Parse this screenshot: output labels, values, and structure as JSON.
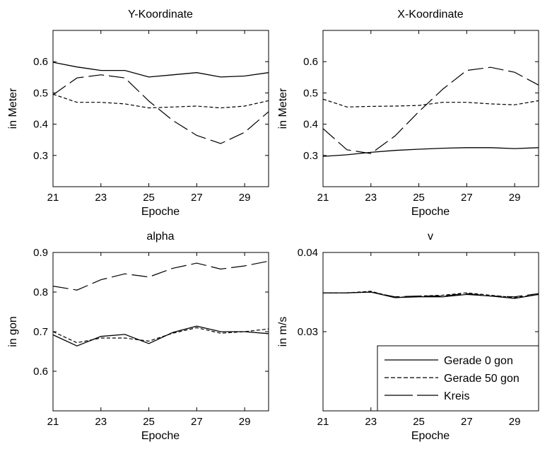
{
  "chart_data": [
    {
      "type": "line",
      "title": "Y-Koordinate",
      "xlabel": "Epoche",
      "ylabel": "in Meter",
      "xlim": [
        21,
        30
      ],
      "ylim": [
        0.2,
        0.7
      ],
      "xticks": [
        21,
        23,
        25,
        27,
        29
      ],
      "xtick_labels": [
        "21",
        "23",
        "25",
        "27",
        "29"
      ],
      "yticks": [
        0.3,
        0.4,
        0.5,
        0.6
      ],
      "ytick_labels": [
        "0.3",
        "0.4",
        "0.5",
        "0.6"
      ],
      "grid": false,
      "x": [
        21,
        22,
        23,
        24,
        25,
        26,
        27,
        28,
        29,
        30
      ],
      "series": [
        {
          "name": "Gerade 0 gon",
          "style": "solid",
          "values": [
            0.598,
            0.583,
            0.572,
            0.572,
            0.551,
            0.558,
            0.565,
            0.551,
            0.554,
            0.565
          ]
        },
        {
          "name": "Gerade 50 gon",
          "style": "dashed",
          "values": [
            0.496,
            0.47,
            0.47,
            0.465,
            0.452,
            0.455,
            0.458,
            0.452,
            0.458,
            0.475
          ]
        },
        {
          "name": "Kreis",
          "style": "longdash",
          "values": [
            0.494,
            0.548,
            0.558,
            0.548,
            0.474,
            0.412,
            0.364,
            0.338,
            0.374,
            0.44
          ]
        }
      ]
    },
    {
      "type": "line",
      "title": "X-Koordinate",
      "xlabel": "Epoche",
      "ylabel": "in Meter",
      "xlim": [
        21,
        30
      ],
      "ylim": [
        0.2,
        0.7
      ],
      "xticks": [
        21,
        23,
        25,
        27,
        29
      ],
      "xtick_labels": [
        "21",
        "23",
        "25",
        "27",
        "29"
      ],
      "yticks": [
        0.3,
        0.4,
        0.5,
        0.6
      ],
      "ytick_labels": [
        "0.3",
        "0.4",
        "0.5",
        "0.6"
      ],
      "grid": false,
      "x": [
        21,
        22,
        23,
        24,
        25,
        26,
        27,
        28,
        29,
        30
      ],
      "series": [
        {
          "name": "Gerade 0 gon",
          "style": "solid",
          "values": [
            0.297,
            0.302,
            0.31,
            0.316,
            0.32,
            0.323,
            0.325,
            0.325,
            0.322,
            0.325
          ]
        },
        {
          "name": "Gerade 50 gon",
          "style": "dashed",
          "values": [
            0.48,
            0.455,
            0.457,
            0.458,
            0.46,
            0.47,
            0.47,
            0.465,
            0.462,
            0.475
          ]
        },
        {
          "name": "Kreis",
          "style": "longdash",
          "values": [
            0.386,
            0.318,
            0.306,
            0.362,
            0.44,
            0.512,
            0.572,
            0.582,
            0.566,
            0.525
          ]
        }
      ]
    },
    {
      "type": "line",
      "title": "alpha",
      "xlabel": "Epoche",
      "ylabel": "in gon",
      "xlim": [
        21,
        30
      ],
      "ylim": [
        0.5,
        0.9
      ],
      "xticks": [
        21,
        23,
        25,
        27,
        29
      ],
      "xtick_labels": [
        "21",
        "23",
        "25",
        "27",
        "29"
      ],
      "yticks": [
        0.6,
        0.7,
        0.8,
        0.9
      ],
      "ytick_labels": [
        "0.6",
        "0.7",
        "0.8",
        "0.9"
      ],
      "grid": false,
      "x": [
        21,
        22,
        23,
        24,
        25,
        26,
        27,
        28,
        29,
        30
      ],
      "series": [
        {
          "name": "Gerade 0 gon",
          "style": "solid",
          "values": [
            0.692,
            0.664,
            0.688,
            0.693,
            0.67,
            0.698,
            0.714,
            0.7,
            0.7,
            0.695
          ]
        },
        {
          "name": "Gerade 50 gon",
          "style": "dashed",
          "values": [
            0.7,
            0.672,
            0.684,
            0.684,
            0.676,
            0.696,
            0.71,
            0.696,
            0.7,
            0.707
          ]
        },
        {
          "name": "Kreis",
          "style": "longdash",
          "values": [
            0.815,
            0.805,
            0.831,
            0.846,
            0.838,
            0.86,
            0.873,
            0.858,
            0.866,
            0.878
          ]
        }
      ]
    },
    {
      "type": "line",
      "title": "v",
      "xlabel": "Epoche",
      "ylabel": "in m/s",
      "xlim": [
        21,
        30
      ],
      "ylim": [
        0.02,
        0.04
      ],
      "xticks": [
        21,
        23,
        25,
        27,
        29
      ],
      "xtick_labels": [
        "21",
        "23",
        "25",
        "27",
        "29"
      ],
      "yticks": [
        0.03,
        0.04
      ],
      "ytick_labels": [
        "0.03",
        "0.04"
      ],
      "grid": false,
      "legend": "bottom-right",
      "x": [
        21,
        22,
        23,
        24,
        25,
        26,
        27,
        28,
        29,
        30
      ],
      "series": [
        {
          "name": "Gerade 0 gon",
          "style": "solid",
          "values": [
            0.0349,
            0.0349,
            0.035,
            0.0343,
            0.0344,
            0.0344,
            0.0347,
            0.0345,
            0.0342,
            0.0347
          ]
        },
        {
          "name": "Gerade 50 gon",
          "style": "dashed",
          "values": [
            0.0349,
            0.0349,
            0.0351,
            0.0343,
            0.0345,
            0.0346,
            0.0349,
            0.0346,
            0.0343,
            0.0347
          ]
        },
        {
          "name": "Kreis",
          "style": "longdash",
          "values": [
            0.0349,
            0.0349,
            0.035,
            0.0344,
            0.0345,
            0.0345,
            0.0348,
            0.0345,
            0.0344,
            0.0348
          ]
        }
      ]
    }
  ],
  "legend": {
    "entries": [
      {
        "label": "Gerade 0 gon",
        "style": "solid"
      },
      {
        "label": "Gerade 50 gon",
        "style": "dashed"
      },
      {
        "label": "Kreis",
        "style": "longdash"
      }
    ]
  }
}
